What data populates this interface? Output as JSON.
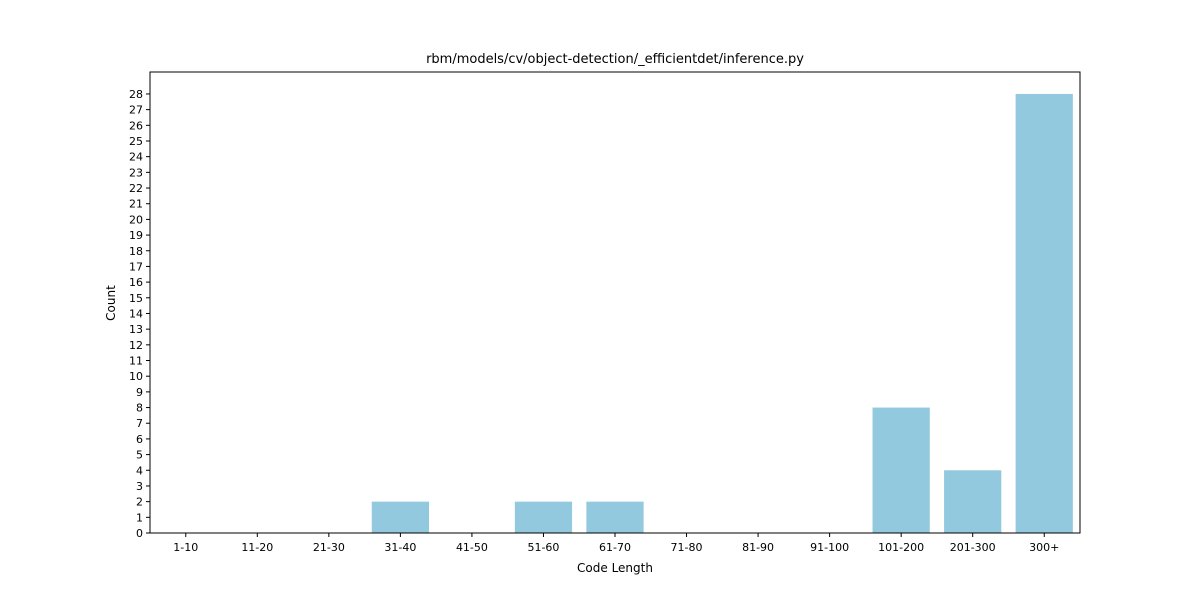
{
  "chart_data": {
    "type": "bar",
    "title": "rbm/models/cv/object-detection/_efficientdet/inference.py",
    "xlabel": "Code Length",
    "ylabel": "Count",
    "categories": [
      "1-10",
      "11-20",
      "21-30",
      "31-40",
      "41-50",
      "51-60",
      "61-70",
      "71-80",
      "81-90",
      "91-100",
      "101-200",
      "201-300",
      "300+"
    ],
    "values": [
      0,
      0,
      0,
      2,
      0,
      2,
      2,
      0,
      0,
      0,
      8,
      4,
      28
    ],
    "yticks": [
      0,
      1,
      2,
      3,
      4,
      5,
      6,
      7,
      8,
      9,
      10,
      11,
      12,
      13,
      14,
      15,
      16,
      17,
      18,
      19,
      20,
      21,
      22,
      23,
      24,
      25,
      26,
      27,
      28
    ],
    "ylim": [
      0,
      29.4
    ],
    "grid": false,
    "legend": "none",
    "bar_color": "#92c9de"
  }
}
